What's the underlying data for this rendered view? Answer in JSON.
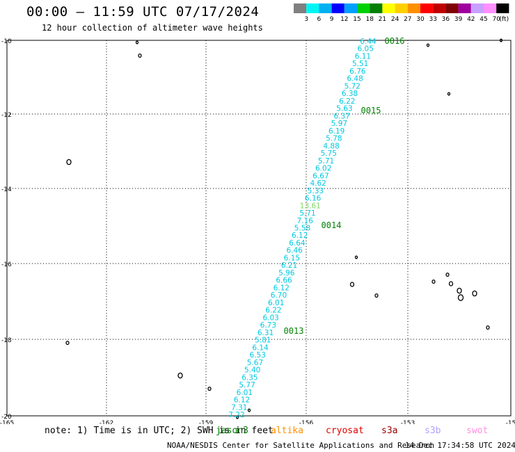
{
  "header": {
    "title": "00:00 – 11:59 UTC 07/17/2024",
    "subtitle": "12 hour collection of altimeter wave heights"
  },
  "colorbar": {
    "colors": [
      "#808080",
      "#00f5f5",
      "#00b0f0",
      "#0000ff",
      "#00a0ff",
      "#00d000",
      "#008000",
      "#ffff00",
      "#ffd000",
      "#ff9000",
      "#ff0000",
      "#c00000",
      "#800000",
      "#a000a0",
      "#c8a0ff",
      "#ff90ff",
      "#000000"
    ],
    "labels": [
      "3",
      "6",
      "9",
      "12",
      "15",
      "18",
      "21",
      "24",
      "27",
      "30",
      "33",
      "36",
      "39",
      "42",
      "45",
      "70",
      "(ft)"
    ]
  },
  "axes": {
    "lat_labels": [
      "-10",
      "-12",
      "-14",
      "-16",
      "-18",
      "-20"
    ],
    "lon_labels": [
      "-165",
      "-162",
      "-159",
      "-156",
      "-153",
      "-15"
    ]
  },
  "track": {
    "readings": [
      {
        "v": "6.44",
        "c": "#00c8e0"
      },
      {
        "v": "6.05",
        "c": "#00c8e0"
      },
      {
        "v": "6.11",
        "c": "#00c8e0"
      },
      {
        "v": "5.51",
        "c": "#00c8e0"
      },
      {
        "v": "6.76",
        "c": "#00c8e0"
      },
      {
        "v": "6.48",
        "c": "#00c8e0"
      },
      {
        "v": "5.72",
        "c": "#00c8e0"
      },
      {
        "v": "6.38",
        "c": "#00c8e0"
      },
      {
        "v": "6.22",
        "c": "#00c8e0"
      },
      {
        "v": "5.63",
        "c": "#00c8e0"
      },
      {
        "v": "6.37",
        "c": "#00c8e0"
      },
      {
        "v": "5.97",
        "c": "#00c8e0"
      },
      {
        "v": "6.19",
        "c": "#00c8e0"
      },
      {
        "v": "5.78",
        "c": "#00c8e0"
      },
      {
        "v": "4.88",
        "c": "#00c8e0"
      },
      {
        "v": "5.75",
        "c": "#00c8e0"
      },
      {
        "v": "5.71",
        "c": "#00c8e0"
      },
      {
        "v": "6.02",
        "c": "#00c8e0"
      },
      {
        "v": "6.67",
        "c": "#00c8e0"
      },
      {
        "v": "4.62",
        "c": "#00c8e0"
      },
      {
        "v": "5.33",
        "c": "#00c8e0"
      },
      {
        "v": "6.16",
        "c": "#00c8e0"
      },
      {
        "v": "13.61",
        "c": "#7cd860"
      },
      {
        "v": "5.71",
        "c": "#00c8e0"
      },
      {
        "v": "7.16",
        "c": "#00c8e0"
      },
      {
        "v": "5.58",
        "c": "#00c8e0"
      },
      {
        "v": "6.12",
        "c": "#00c8e0"
      },
      {
        "v": "6.64",
        "c": "#00c8e0"
      },
      {
        "v": "6.46",
        "c": "#00c8e0"
      },
      {
        "v": "6.15",
        "c": "#00c8e0"
      },
      {
        "v": "6.21",
        "c": "#00c8e0"
      },
      {
        "v": "5.96",
        "c": "#00c8e0"
      },
      {
        "v": "6.66",
        "c": "#00c8e0"
      },
      {
        "v": "6.12",
        "c": "#00c8e0"
      },
      {
        "v": "6.70",
        "c": "#00c8e0"
      },
      {
        "v": "6.01",
        "c": "#00c8e0"
      },
      {
        "v": "6.22",
        "c": "#00c8e0"
      },
      {
        "v": "6.03",
        "c": "#00c8e0"
      },
      {
        "v": "6.73",
        "c": "#00c8e0"
      },
      {
        "v": "6.31",
        "c": "#00c8e0"
      },
      {
        "v": "5.81",
        "c": "#00c8e0"
      },
      {
        "v": "6.14",
        "c": "#00c8e0"
      },
      {
        "v": "6.53",
        "c": "#00c8e0"
      },
      {
        "v": "5.67",
        "c": "#00c8e0"
      },
      {
        "v": "5.40",
        "c": "#00c8e0"
      },
      {
        "v": "6.35",
        "c": "#00c8e0"
      },
      {
        "v": "5.77",
        "c": "#00c8e0"
      },
      {
        "v": "6.01",
        "c": "#00c8e0"
      },
      {
        "v": "6.12",
        "c": "#00c8e0"
      },
      {
        "v": "7.31",
        "c": "#00c8e0"
      },
      {
        "v": "7.22",
        "c": "#00c8e0"
      }
    ],
    "time_labels": [
      "0016",
      "0015",
      "0014",
      "0013"
    ],
    "time_color": "#008000"
  },
  "footer": {
    "note": "note: 1) Time is in UTC; 2) SWH is in feet",
    "legend": [
      {
        "name": "jason3",
        "color": "#008000"
      },
      {
        "name": "altika",
        "color": "#ff9000"
      },
      {
        "name": "cryosat",
        "color": "#e00000"
      },
      {
        "name": "s3a",
        "color": "#a00000"
      },
      {
        "name": "s3b",
        "color": "#b0a0ff"
      },
      {
        "name": "swot",
        "color": "#ff90e0"
      }
    ],
    "credit": "NOAA/NESDIS Center for Satellite Applications and Research",
    "timestamp": "14 Dec 17:34:58 UTC 2024"
  }
}
